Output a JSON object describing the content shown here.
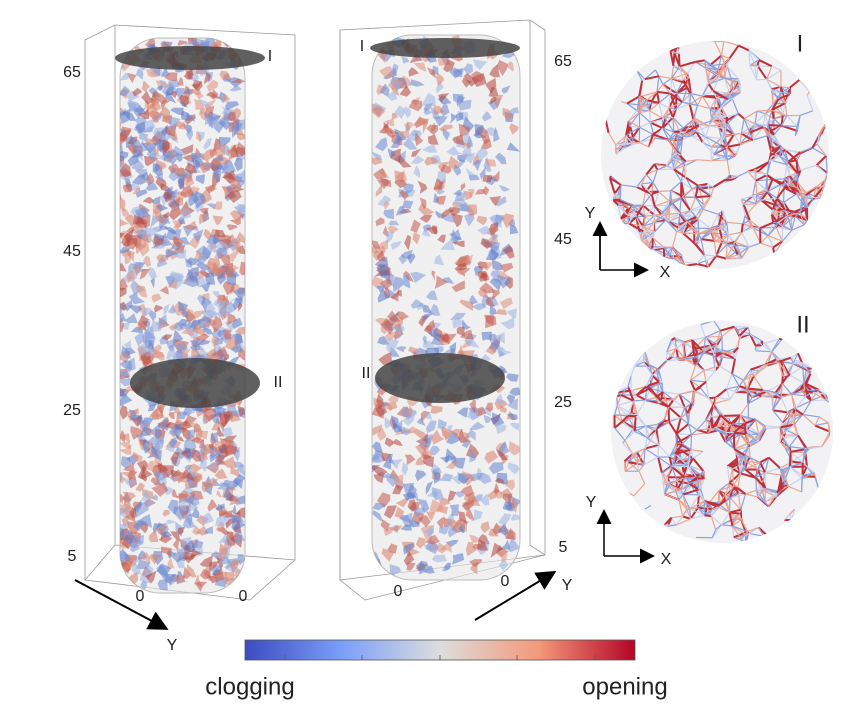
{
  "left_panel": {
    "z_ticks": [
      65,
      45,
      25,
      5
    ],
    "base_ticks": [
      0,
      0
    ],
    "axis_label": "Y",
    "sections": [
      "I",
      "II"
    ]
  },
  "middle_panel": {
    "z_ticks": [
      65,
      45,
      25,
      5
    ],
    "base_ticks": [
      0,
      0
    ],
    "axis_label": "Y",
    "sections": [
      "I",
      "II"
    ]
  },
  "slices": [
    {
      "label": "I",
      "vertical_axis": "Y",
      "horizontal_axis": "X"
    },
    {
      "label": "II",
      "vertical_axis": "Y",
      "horizontal_axis": "X"
    }
  ],
  "colorbar": {
    "low_label": "clogging",
    "high_label": "opening"
  }
}
